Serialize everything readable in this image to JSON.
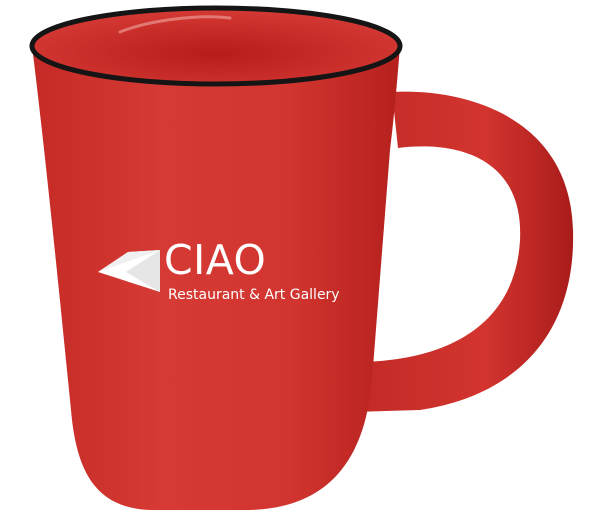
{
  "product": {
    "name": "red-ceramic-mug",
    "body_color": "#d33631",
    "interior_color": "#c8231f",
    "rim_color": "#151515",
    "handle_color": "#cc302c"
  },
  "logo": {
    "mark_icon": "folded-triangle-icon",
    "title": "CIAO",
    "tagline": "Restaurant & Art Gallery",
    "color": "#ffffff"
  }
}
